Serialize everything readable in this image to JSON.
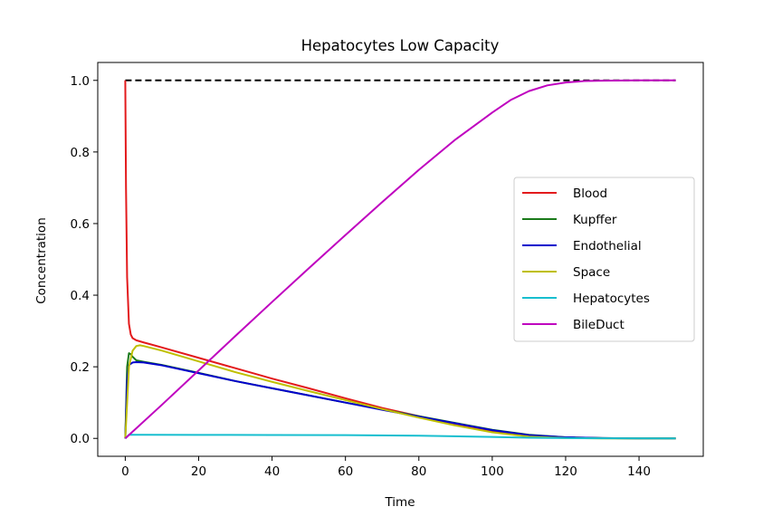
{
  "chart_data": {
    "type": "line",
    "title": "Hepatocytes Low Capacity",
    "xlabel": "Time",
    "ylabel": "Concentration",
    "xlim": [
      -7.5,
      157.5
    ],
    "ylim": [
      -0.05,
      1.05
    ],
    "xticks": [
      0,
      20,
      40,
      60,
      80,
      100,
      120,
      140
    ],
    "xtick_labels": [
      "0",
      "20",
      "40",
      "60",
      "80",
      "100",
      "120",
      "140"
    ],
    "yticks": [
      0.0,
      0.2,
      0.4,
      0.6,
      0.8,
      1.0
    ],
    "ytick_labels": [
      "0.0",
      "0.2",
      "0.4",
      "0.6",
      "0.8",
      "1.0"
    ],
    "grid": false,
    "legend_position": "center-right",
    "reference_line": {
      "y": 1.0,
      "x": [
        0,
        150
      ],
      "color": "#000000",
      "style": "dashed"
    },
    "series": [
      {
        "name": "Blood",
        "color": "#e31a1c",
        "x": [
          0,
          0.2,
          0.5,
          1,
          1.5,
          2,
          3,
          5,
          10,
          20,
          30,
          40,
          50,
          60,
          70,
          80,
          90,
          100,
          110,
          120,
          130,
          140,
          150
        ],
        "y": [
          1.0,
          0.7,
          0.45,
          0.32,
          0.29,
          0.28,
          0.274,
          0.268,
          0.254,
          0.225,
          0.196,
          0.167,
          0.14,
          0.112,
          0.085,
          0.062,
          0.04,
          0.02,
          0.007,
          0.002,
          0.0005,
          0.0001,
          0.0
        ]
      },
      {
        "name": "Kupffer",
        "color": "#1a7a1a",
        "x": [
          0,
          0.5,
          1,
          1.5,
          2,
          3,
          5,
          10,
          20,
          30,
          40,
          50,
          60,
          70,
          80,
          90,
          100,
          110,
          120,
          130,
          140,
          150
        ],
        "y": [
          0.0,
          0.2,
          0.238,
          0.235,
          0.228,
          0.218,
          0.214,
          0.205,
          0.183,
          0.16,
          0.14,
          0.12,
          0.1,
          0.081,
          0.062,
          0.043,
          0.024,
          0.01,
          0.003,
          0.001,
          0.0,
          0.0
        ]
      },
      {
        "name": "Endothelial",
        "color": "#0000cc",
        "x": [
          0,
          0.5,
          1,
          2,
          3,
          5,
          10,
          20,
          30,
          40,
          50,
          60,
          70,
          80,
          90,
          100,
          110,
          120,
          130,
          140,
          150
        ],
        "y": [
          0.0,
          0.16,
          0.205,
          0.212,
          0.213,
          0.212,
          0.204,
          0.182,
          0.16,
          0.14,
          0.12,
          0.1,
          0.08,
          0.061,
          0.042,
          0.023,
          0.009,
          0.003,
          0.001,
          0.0,
          0.0
        ]
      },
      {
        "name": "Space",
        "color": "#bfbf00",
        "x": [
          0,
          0.5,
          1,
          2,
          3,
          4,
          5,
          10,
          20,
          30,
          40,
          50,
          60,
          70,
          80,
          90,
          100,
          110,
          120,
          130,
          140,
          150
        ],
        "y": [
          0.0,
          0.1,
          0.2,
          0.245,
          0.258,
          0.26,
          0.258,
          0.245,
          0.215,
          0.185,
          0.158,
          0.132,
          0.107,
          0.082,
          0.058,
          0.036,
          0.017,
          0.005,
          0.001,
          0.0,
          0.0,
          0.0
        ]
      },
      {
        "name": "Hepatocytes",
        "color": "#17becf",
        "x": [
          0,
          1,
          5,
          20,
          40,
          60,
          80,
          100,
          110,
          120,
          130,
          150
        ],
        "y": [
          0.0,
          0.01,
          0.01,
          0.0098,
          0.0095,
          0.009,
          0.0075,
          0.004,
          0.002,
          0.0008,
          0.0002,
          0.0
        ]
      },
      {
        "name": "BileDuct",
        "color": "#bf00bf",
        "x": [
          0,
          10,
          20,
          30,
          40,
          50,
          60,
          70,
          80,
          90,
          100,
          105,
          110,
          115,
          120,
          125,
          130,
          140,
          150
        ],
        "y": [
          0.0,
          0.094,
          0.19,
          0.286,
          0.381,
          0.475,
          0.568,
          0.66,
          0.75,
          0.835,
          0.91,
          0.945,
          0.97,
          0.986,
          0.994,
          0.998,
          0.999,
          1.0,
          1.0
        ]
      }
    ]
  }
}
